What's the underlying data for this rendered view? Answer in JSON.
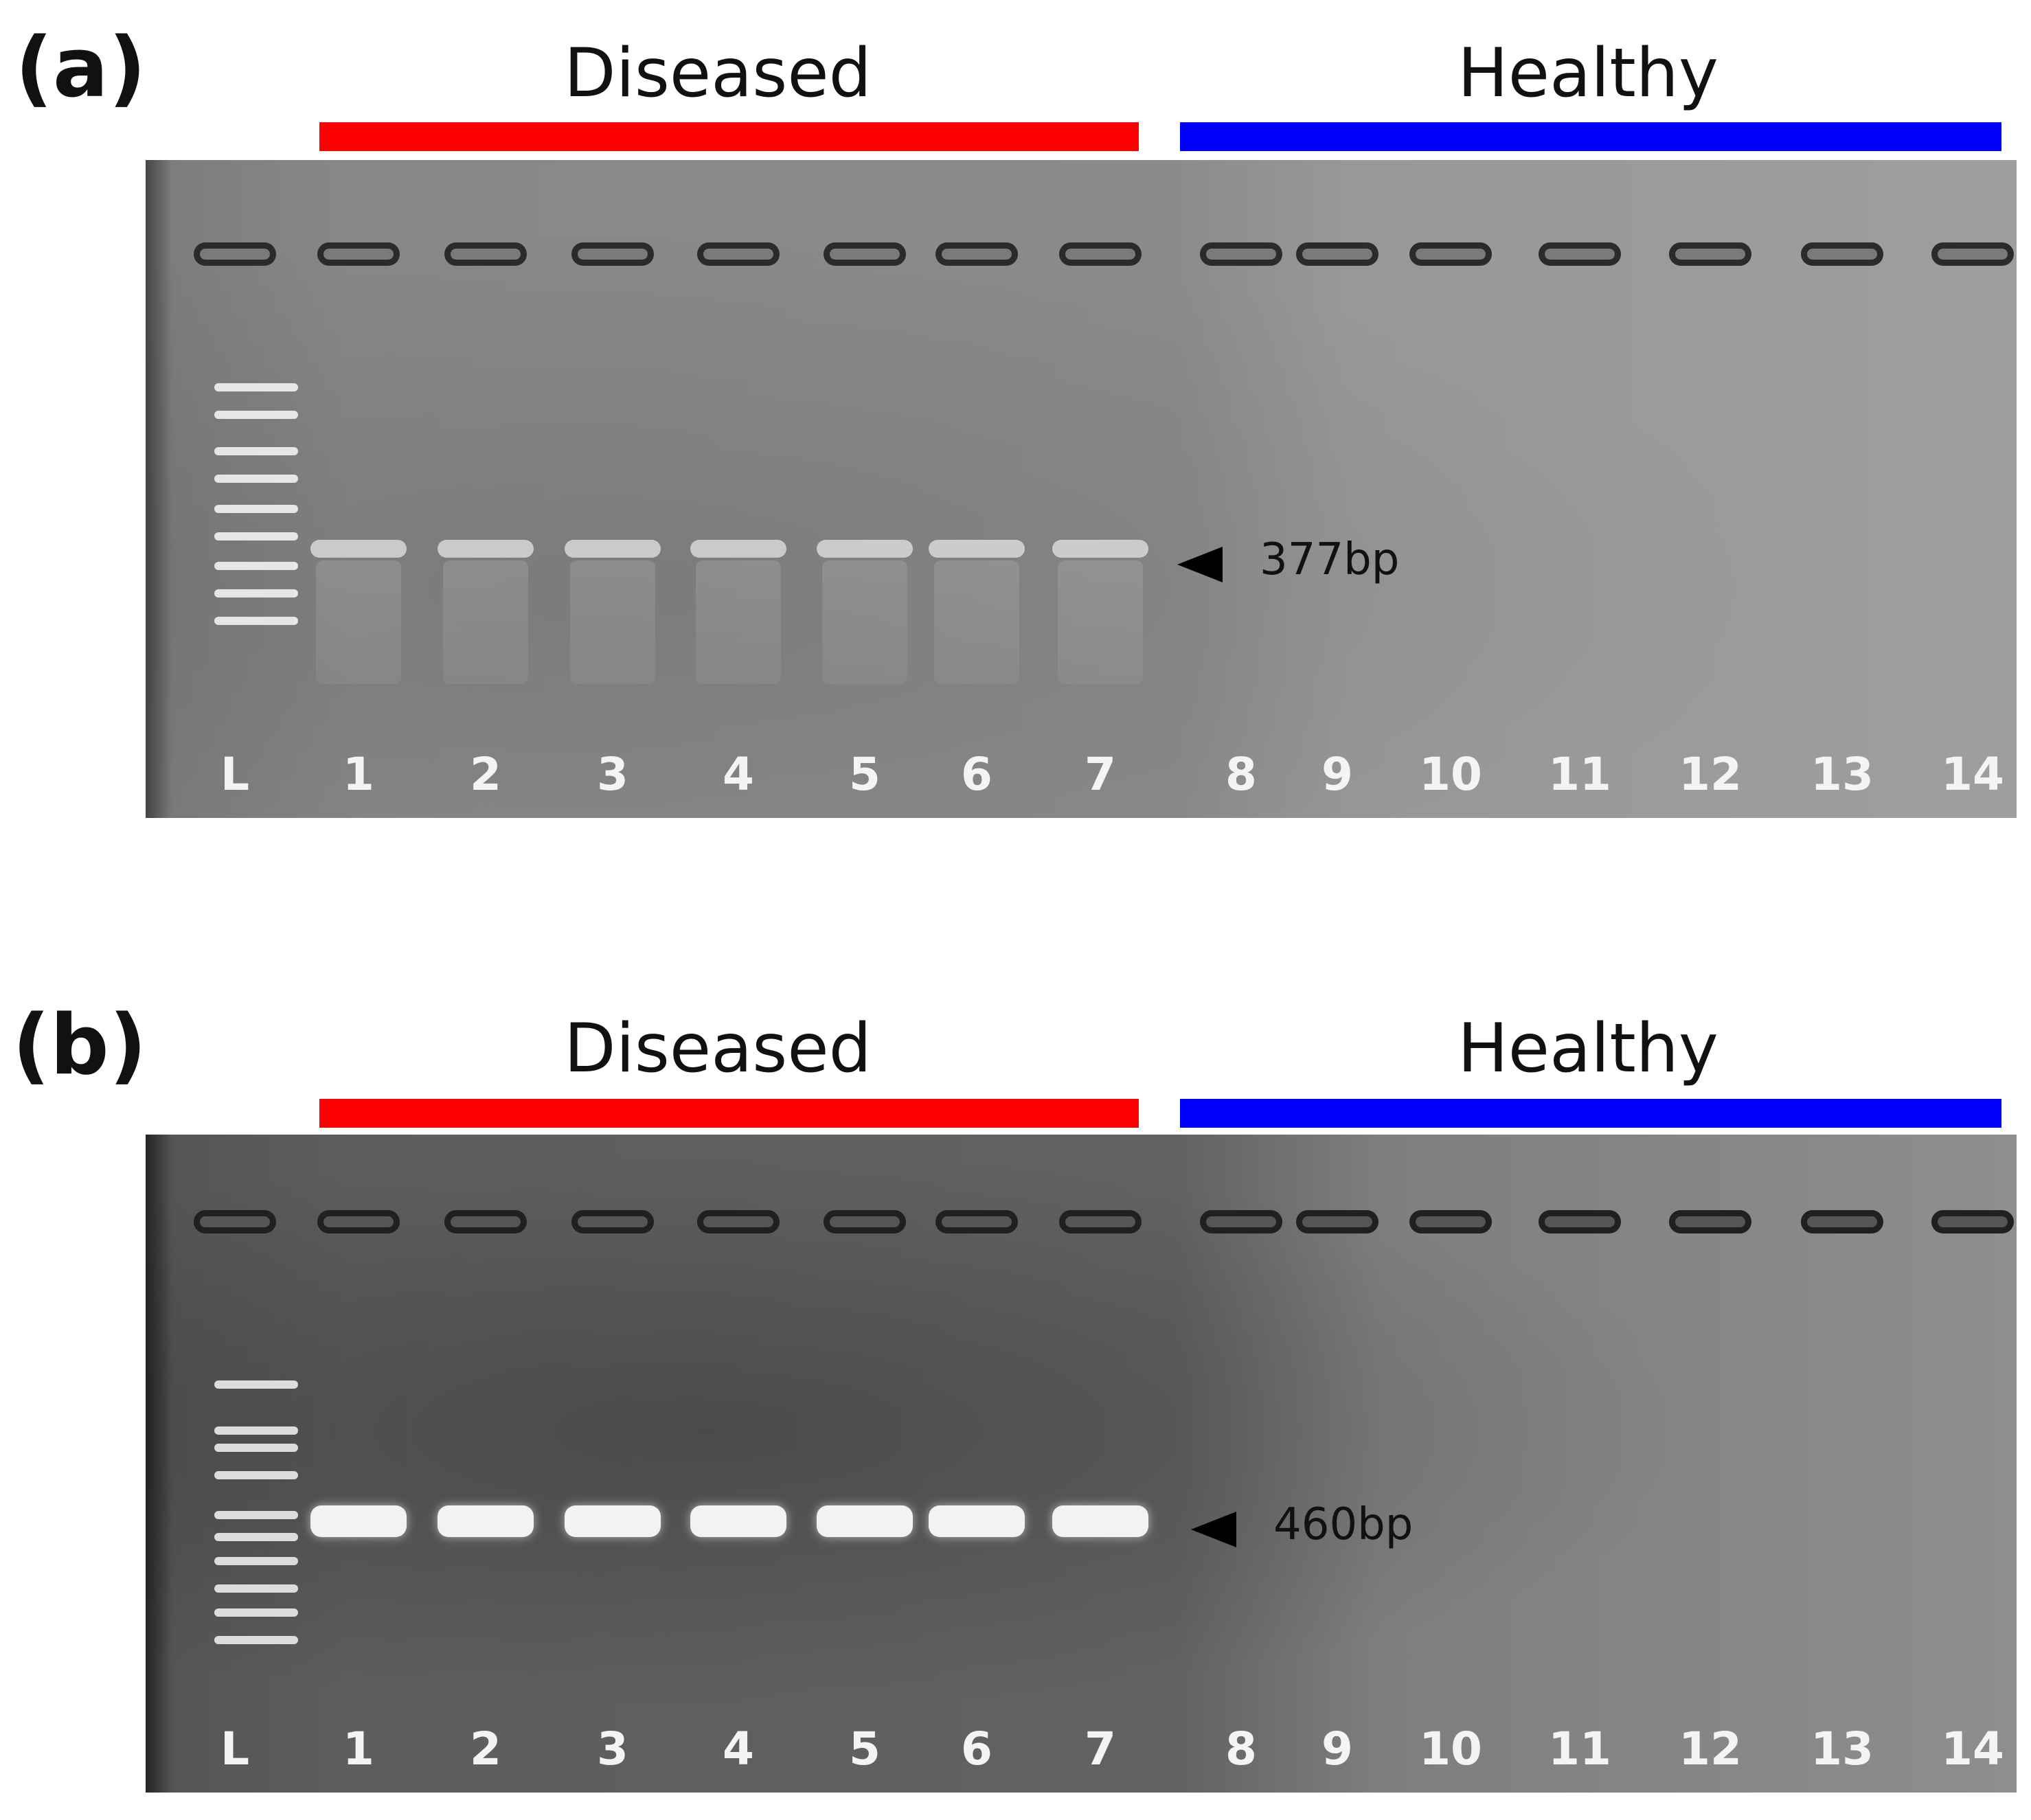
{
  "panels": [
    {
      "letter": "(a)",
      "groups": [
        {
          "label": "Diseased",
          "color": "#ff0000"
        },
        {
          "label": "Healthy",
          "color": "#0000ff"
        }
      ],
      "lanes": [
        "L",
        "1",
        "2",
        "3",
        "4",
        "5",
        "6",
        "7",
        "8",
        "9",
        "10",
        "11",
        "12",
        "13",
        "14"
      ],
      "positive_lanes": [
        "1",
        "2",
        "3",
        "4",
        "5",
        "6",
        "7"
      ],
      "band_size": "377bp"
    },
    {
      "letter": "(b)",
      "groups": [
        {
          "label": "Diseased",
          "color": "#ff0000"
        },
        {
          "label": "Healthy",
          "color": "#0000ff"
        }
      ],
      "lanes": [
        "L",
        "1",
        "2",
        "3",
        "4",
        "5",
        "6",
        "7",
        "8",
        "9",
        "10",
        "11",
        "12",
        "13",
        "14"
      ],
      "positive_lanes": [
        "1",
        "2",
        "3",
        "4",
        "5",
        "6",
        "7"
      ],
      "band_size": "460bp"
    }
  ]
}
